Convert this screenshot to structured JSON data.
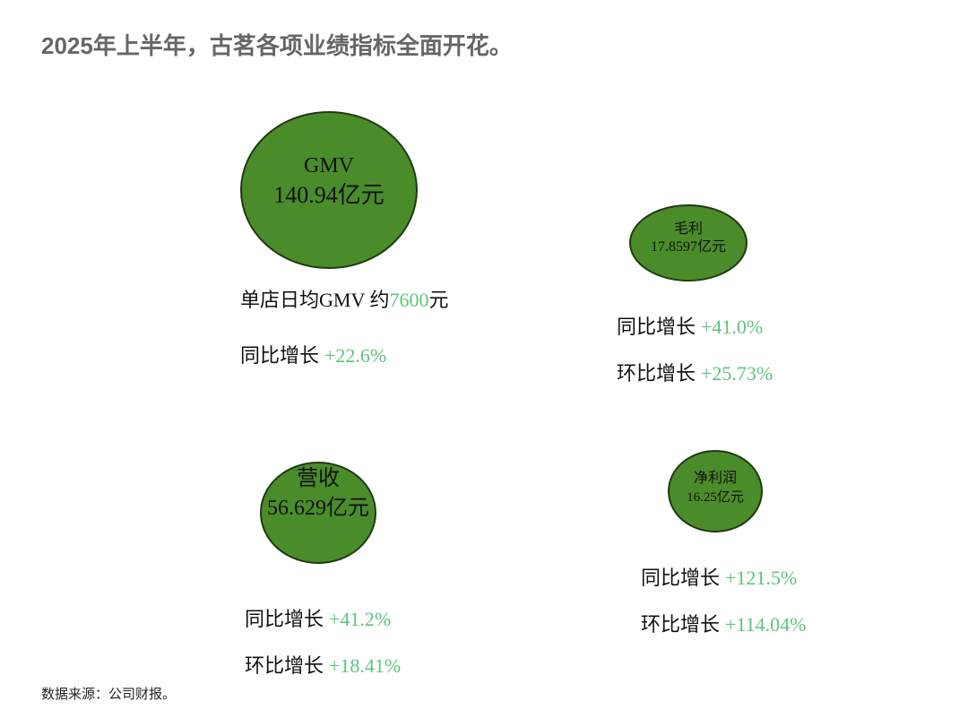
{
  "header": {
    "title": "2025年上半年，古茗各项业绩指标全面开花。"
  },
  "metrics": [
    {
      "name": "GMV",
      "amount": "140.94亿元",
      "notes": [
        {
          "label": "单店日均GMV 约",
          "value": "7600",
          "suffix": "元"
        },
        {
          "label": "同比增长",
          "value": "+22.6%"
        }
      ]
    },
    {
      "name": "毛利",
      "amount": "17.8597亿元",
      "notes": [
        {
          "label": "同比增长",
          "value": "+41.0%"
        },
        {
          "label": "环比增长",
          "value": "+25.73%"
        }
      ]
    },
    {
      "name": "营收",
      "amount": "56.629亿元",
      "notes": [
        {
          "label": "同比增长",
          "value": "+41.2%"
        },
        {
          "label": "环比增长",
          "value": "+18.41%"
        }
      ]
    },
    {
      "name": "净利润",
      "amount": "16.25亿元",
      "notes": [
        {
          "label": "同比增长",
          "value": "+121.5%"
        },
        {
          "label": "环比增长",
          "value": "+114.04%"
        }
      ]
    }
  ],
  "footer": {
    "source": "数据来源：公司财报。"
  }
}
